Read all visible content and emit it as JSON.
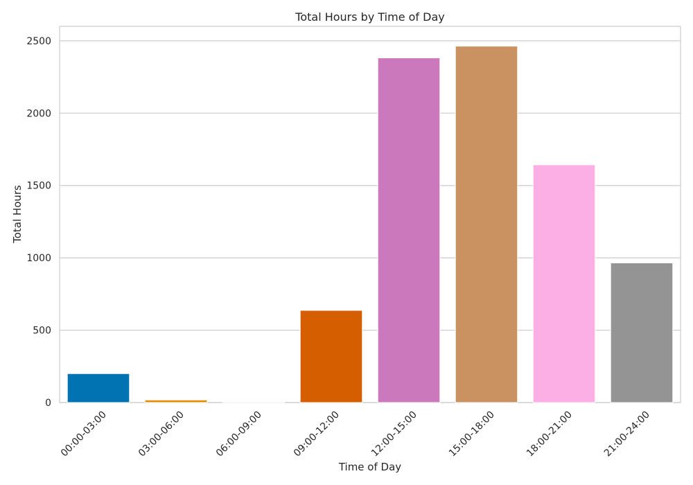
{
  "chart_data": {
    "type": "bar",
    "title": "Total Hours by Time of Day",
    "xlabel": "Time of Day",
    "ylabel": "Total Hours",
    "categories": [
      "00:00-03:00",
      "03:00-06:00",
      "06:00-09:00",
      "09:00-12:00",
      "12:00-15:00",
      "15:00-18:00",
      "18:00-21:00",
      "21:00-24:00"
    ],
    "values": [
      200,
      18,
      5,
      637,
      2382,
      2463,
      1643,
      965
    ],
    "colors": [
      "#0173b2",
      "#de8f05",
      "#029e73",
      "#d55e00",
      "#cc78bc",
      "#ca9161",
      "#fbafe4",
      "#949494"
    ],
    "ylim": [
      0,
      2600
    ],
    "yticks": [
      0,
      500,
      1000,
      1500,
      2000,
      2500
    ],
    "grid": true,
    "legend": "none"
  }
}
